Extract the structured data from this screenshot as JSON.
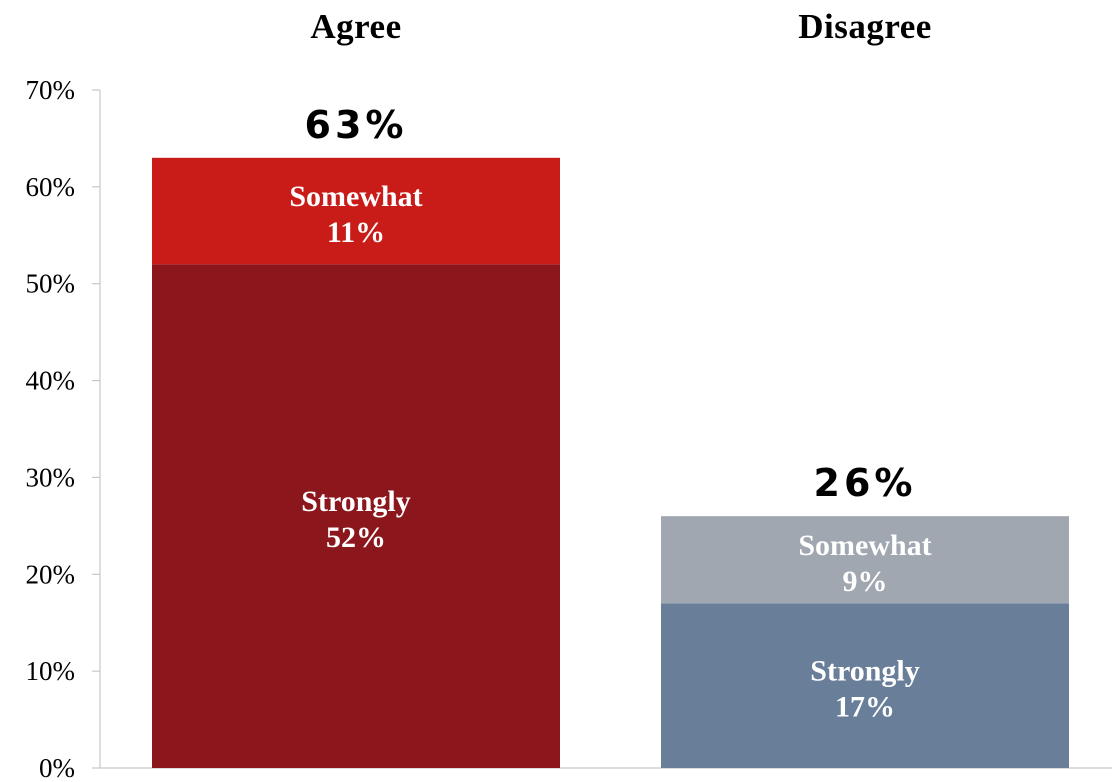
{
  "chart_data": {
    "type": "bar",
    "stacked": true,
    "categories": [
      "Agree",
      "Disagree"
    ],
    "series": [
      {
        "name": "Strongly",
        "values": [
          52,
          17
        ],
        "labels": [
          "52%",
          "17%"
        ],
        "colors": [
          "#8B161C",
          "#687E99"
        ]
      },
      {
        "name": "Somewhat",
        "values": [
          11,
          9
        ],
        "labels": [
          "11%",
          "9%"
        ],
        "colors": [
          "#C91B18",
          "#A0A7B1"
        ]
      }
    ],
    "totals": [
      63,
      26
    ],
    "total_labels": [
      "63%",
      "26%"
    ],
    "ylim": [
      0,
      70
    ],
    "yticks": [
      "0%",
      "10%",
      "20%",
      "30%",
      "40%",
      "50%",
      "60%",
      "70%"
    ],
    "grid": false,
    "legend": "none",
    "title": "",
    "xlabel": "",
    "ylabel": ""
  }
}
